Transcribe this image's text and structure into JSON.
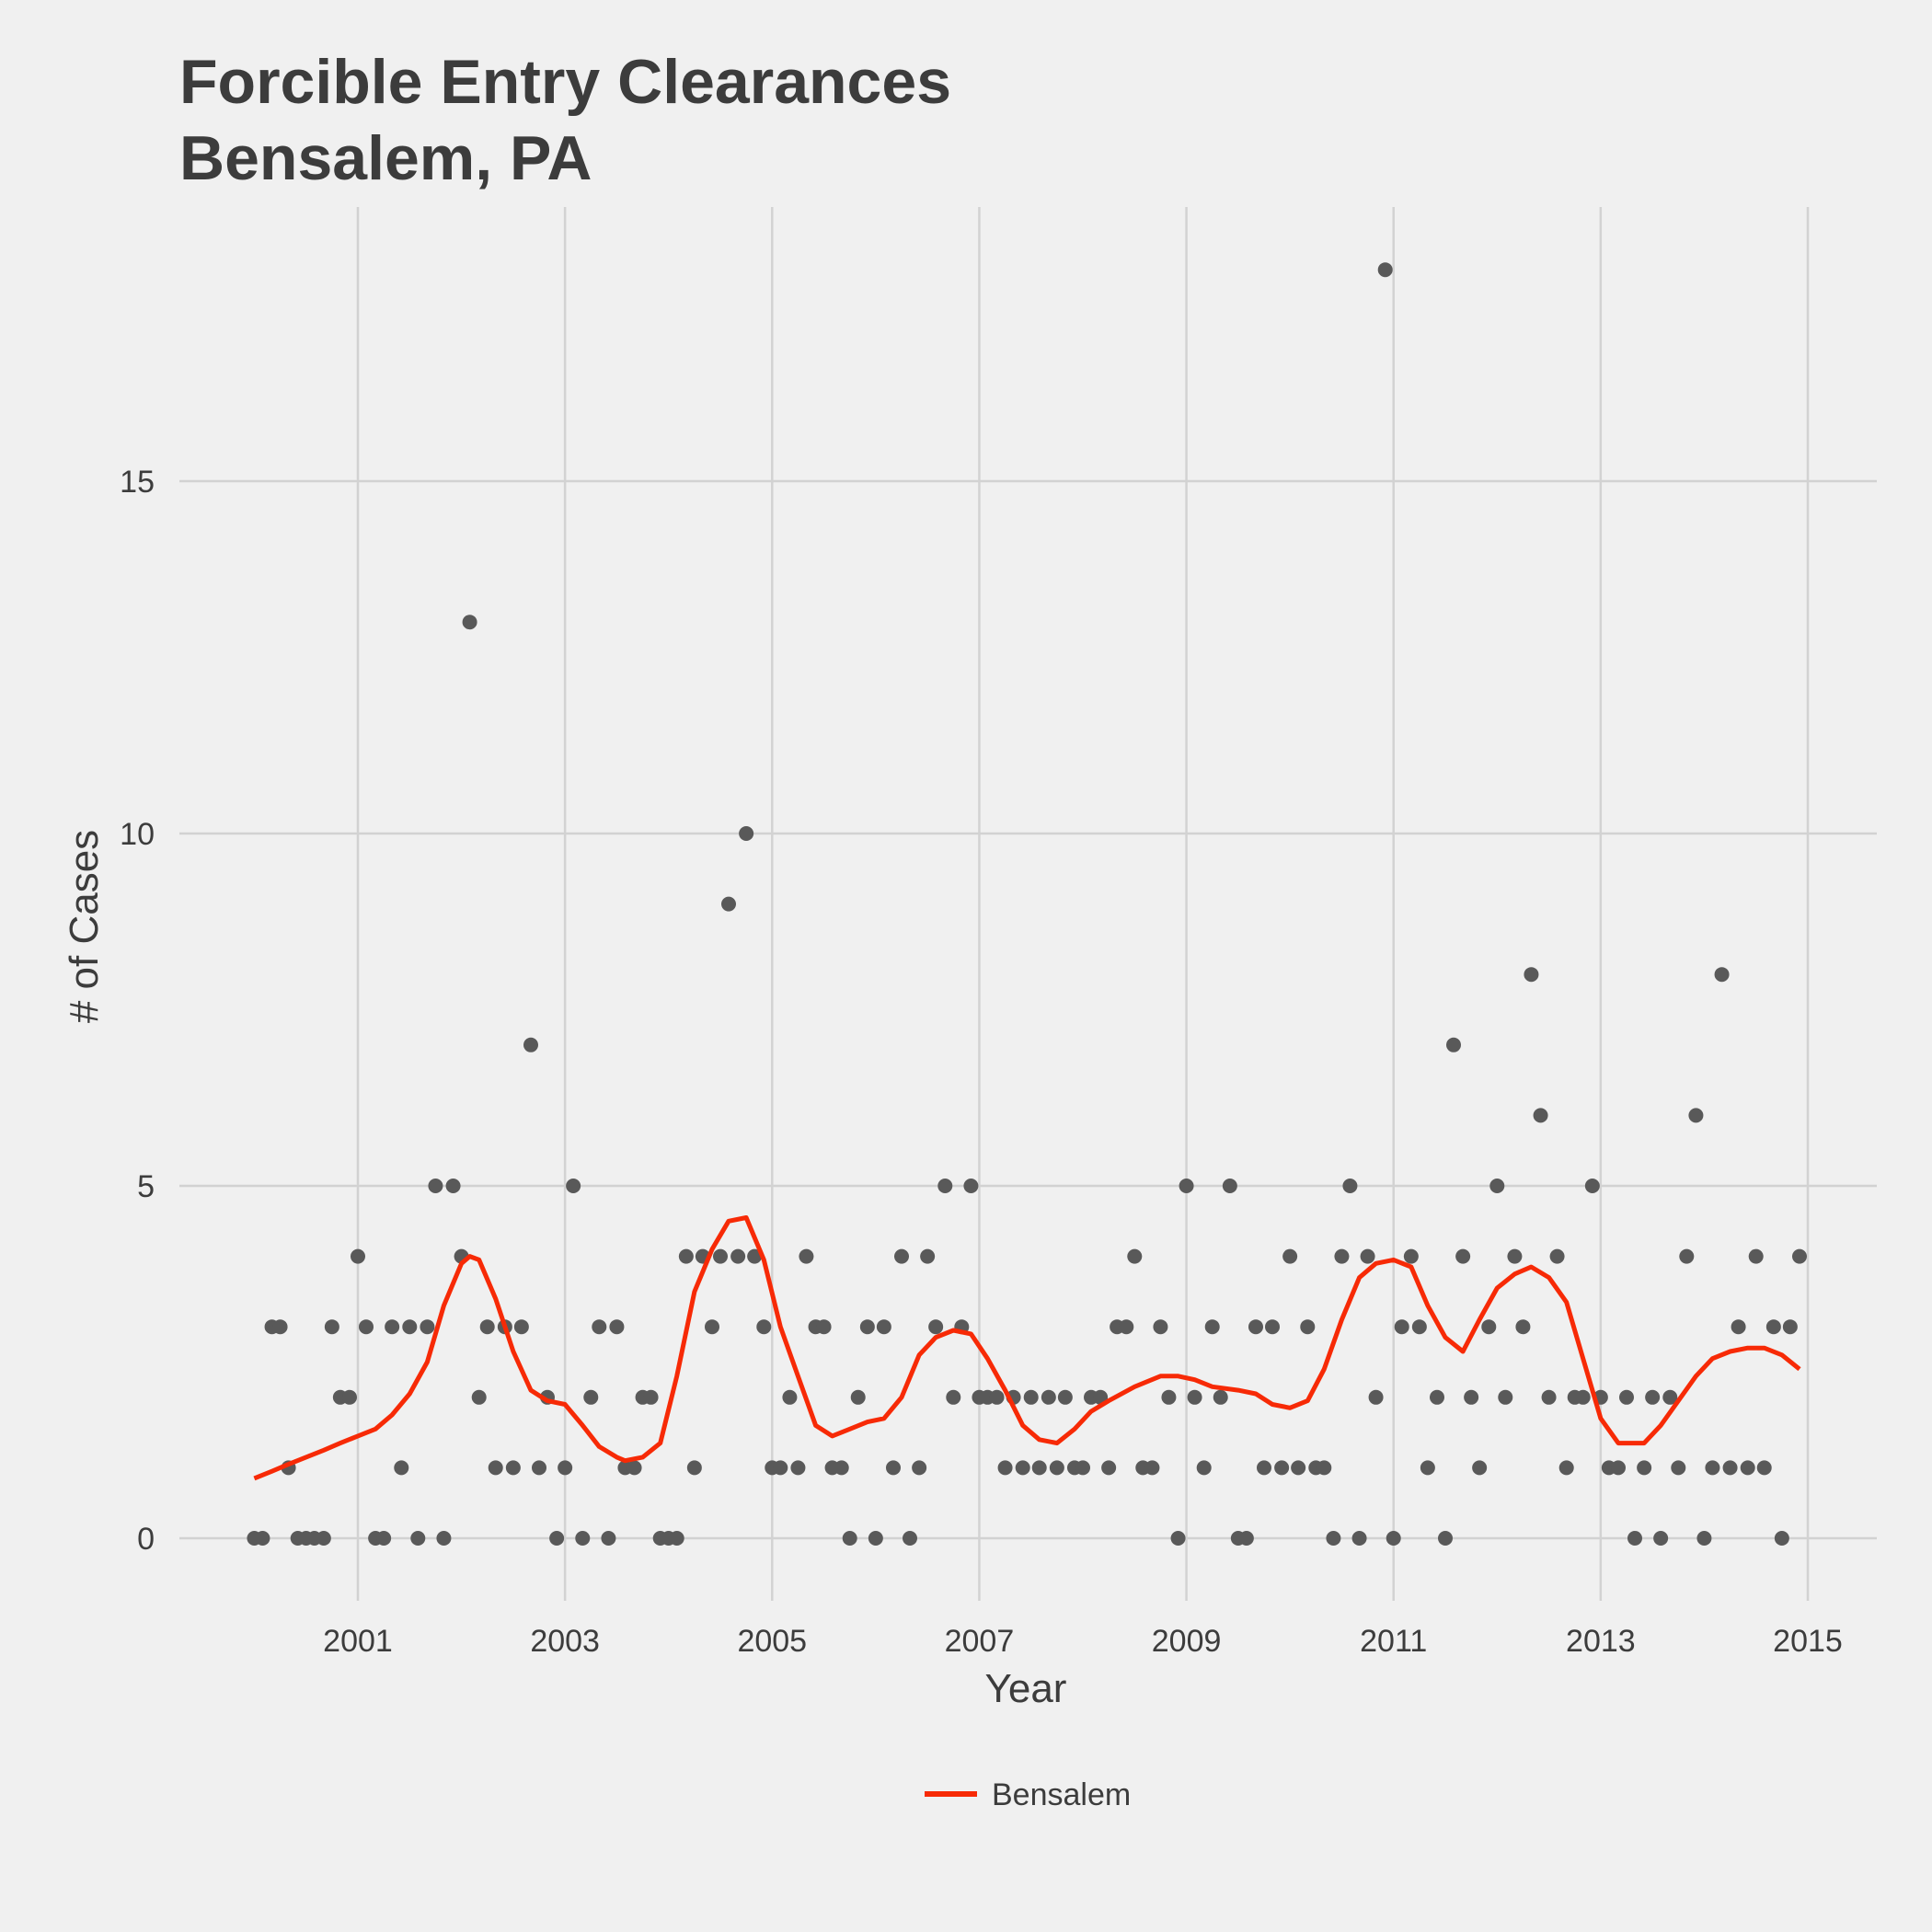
{
  "chart_data": {
    "type": "scatter",
    "title": [
      "Forcible Entry Clearances",
      "Bensalem, PA"
    ],
    "xlabel": "Year",
    "ylabel": "# of Cases",
    "x_ticks": [
      "2001",
      "2003",
      "2005",
      "2007",
      "2009",
      "2011",
      "2013",
      "2015"
    ],
    "y_ticks": [
      "0",
      "5",
      "10",
      "15"
    ],
    "xlim": [
      2000.0,
      2016.0
    ],
    "ylim": [
      0,
      18
    ],
    "grid": true,
    "legend_position": "bottom",
    "colors": {
      "points": "#595959",
      "smooth": "#f72a06",
      "grid": "#d2d2d2",
      "background": "#f0f0f0",
      "text": "#3c3c3c"
    },
    "points": [
      [
        2000.0,
        0
      ],
      [
        2000.08,
        0
      ],
      [
        2000.17,
        3
      ],
      [
        2000.25,
        3
      ],
      [
        2000.33,
        1
      ],
      [
        2000.42,
        0
      ],
      [
        2000.5,
        0
      ],
      [
        2000.58,
        0
      ],
      [
        2000.67,
        0
      ],
      [
        2000.75,
        3
      ],
      [
        2000.83,
        2
      ],
      [
        2000.92,
        2
      ],
      [
        2001.0,
        4
      ],
      [
        2001.08,
        3
      ],
      [
        2001.17,
        0
      ],
      [
        2001.25,
        0
      ],
      [
        2001.33,
        3
      ],
      [
        2001.42,
        1
      ],
      [
        2001.5,
        3
      ],
      [
        2001.58,
        0
      ],
      [
        2001.67,
        3
      ],
      [
        2001.75,
        5
      ],
      [
        2001.83,
        0
      ],
      [
        2001.92,
        5
      ],
      [
        2002.0,
        4
      ],
      [
        2002.08,
        13
      ],
      [
        2002.17,
        2
      ],
      [
        2002.25,
        3
      ],
      [
        2002.33,
        1
      ],
      [
        2002.42,
        3
      ],
      [
        2002.5,
        1
      ],
      [
        2002.58,
        3
      ],
      [
        2002.67,
        7
      ],
      [
        2002.75,
        1
      ],
      [
        2002.83,
        2
      ],
      [
        2002.92,
        0
      ],
      [
        2003.0,
        1
      ],
      [
        2003.08,
        5
      ],
      [
        2003.17,
        0
      ],
      [
        2003.25,
        2
      ],
      [
        2003.33,
        3
      ],
      [
        2003.42,
        0
      ],
      [
        2003.5,
        3
      ],
      [
        2003.58,
        1
      ],
      [
        2003.67,
        1
      ],
      [
        2003.75,
        2
      ],
      [
        2003.83,
        2
      ],
      [
        2003.92,
        0
      ],
      [
        2004.0,
        0
      ],
      [
        2004.08,
        0
      ],
      [
        2004.17,
        4
      ],
      [
        2004.25,
        1
      ],
      [
        2004.33,
        4
      ],
      [
        2004.42,
        3
      ],
      [
        2004.5,
        4
      ],
      [
        2004.58,
        9
      ],
      [
        2004.67,
        4
      ],
      [
        2004.75,
        10
      ],
      [
        2004.83,
        4
      ],
      [
        2004.92,
        3
      ],
      [
        2005.0,
        1
      ],
      [
        2005.08,
        1
      ],
      [
        2005.17,
        2
      ],
      [
        2005.25,
        1
      ],
      [
        2005.33,
        4
      ],
      [
        2005.42,
        3
      ],
      [
        2005.5,
        3
      ],
      [
        2005.58,
        1
      ],
      [
        2005.67,
        1
      ],
      [
        2005.75,
        0
      ],
      [
        2005.83,
        2
      ],
      [
        2005.92,
        3
      ],
      [
        2006.0,
        0
      ],
      [
        2006.08,
        3
      ],
      [
        2006.17,
        1
      ],
      [
        2006.25,
        4
      ],
      [
        2006.33,
        0
      ],
      [
        2006.42,
        1
      ],
      [
        2006.5,
        4
      ],
      [
        2006.58,
        3
      ],
      [
        2006.67,
        5
      ],
      [
        2006.75,
        2
      ],
      [
        2006.83,
        3
      ],
      [
        2006.92,
        5
      ],
      [
        2007.0,
        2
      ],
      [
        2007.08,
        2
      ],
      [
        2007.17,
        2
      ],
      [
        2007.25,
        1
      ],
      [
        2007.33,
        2
      ],
      [
        2007.42,
        1
      ],
      [
        2007.5,
        2
      ],
      [
        2007.58,
        1
      ],
      [
        2007.67,
        2
      ],
      [
        2007.75,
        1
      ],
      [
        2007.83,
        2
      ],
      [
        2007.92,
        1
      ],
      [
        2008.0,
        1
      ],
      [
        2008.08,
        2
      ],
      [
        2008.17,
        2
      ],
      [
        2008.25,
        1
      ],
      [
        2008.33,
        3
      ],
      [
        2008.42,
        3
      ],
      [
        2008.5,
        4
      ],
      [
        2008.58,
        1
      ],
      [
        2008.67,
        1
      ],
      [
        2008.75,
        3
      ],
      [
        2008.83,
        2
      ],
      [
        2008.92,
        0
      ],
      [
        2009.0,
        5
      ],
      [
        2009.08,
        2
      ],
      [
        2009.17,
        1
      ],
      [
        2009.25,
        3
      ],
      [
        2009.33,
        2
      ],
      [
        2009.42,
        5
      ],
      [
        2009.5,
        0
      ],
      [
        2009.58,
        0
      ],
      [
        2009.67,
        3
      ],
      [
        2009.75,
        1
      ],
      [
        2009.83,
        3
      ],
      [
        2009.92,
        1
      ],
      [
        2010.0,
        4
      ],
      [
        2010.08,
        1
      ],
      [
        2010.17,
        3
      ],
      [
        2010.25,
        1
      ],
      [
        2010.33,
        1
      ],
      [
        2010.42,
        0
      ],
      [
        2010.5,
        4
      ],
      [
        2010.58,
        5
      ],
      [
        2010.67,
        0
      ],
      [
        2010.75,
        4
      ],
      [
        2010.83,
        2
      ],
      [
        2010.92,
        18
      ],
      [
        2011.0,
        0
      ],
      [
        2011.08,
        3
      ],
      [
        2011.17,
        4
      ],
      [
        2011.25,
        3
      ],
      [
        2011.33,
        1
      ],
      [
        2011.42,
        2
      ],
      [
        2011.5,
        0
      ],
      [
        2011.58,
        7
      ],
      [
        2011.67,
        4
      ],
      [
        2011.75,
        2
      ],
      [
        2011.83,
        1
      ],
      [
        2011.92,
        3
      ],
      [
        2012.0,
        5
      ],
      [
        2012.08,
        2
      ],
      [
        2012.17,
        4
      ],
      [
        2012.25,
        3
      ],
      [
        2012.33,
        8
      ],
      [
        2012.42,
        6
      ],
      [
        2012.5,
        2
      ],
      [
        2012.58,
        4
      ],
      [
        2012.67,
        1
      ],
      [
        2012.75,
        2
      ],
      [
        2012.83,
        2
      ],
      [
        2012.92,
        5
      ],
      [
        2013.0,
        2
      ],
      [
        2013.08,
        1
      ],
      [
        2013.17,
        1
      ],
      [
        2013.25,
        2
      ],
      [
        2013.33,
        0
      ],
      [
        2013.42,
        1
      ],
      [
        2013.5,
        2
      ],
      [
        2013.58,
        0
      ],
      [
        2013.67,
        2
      ],
      [
        2013.75,
        1
      ],
      [
        2013.83,
        4
      ],
      [
        2013.92,
        6
      ],
      [
        2014.0,
        0
      ],
      [
        2014.08,
        1
      ],
      [
        2014.17,
        8
      ],
      [
        2014.25,
        1
      ],
      [
        2014.33,
        3
      ],
      [
        2014.42,
        1
      ],
      [
        2014.5,
        4
      ],
      [
        2014.58,
        1
      ],
      [
        2014.67,
        3
      ],
      [
        2014.75,
        0
      ],
      [
        2014.83,
        3
      ],
      [
        2014.92,
        4
      ]
    ],
    "series": [
      {
        "name": "Bensalem",
        "x": [
          2000.0,
          2000.17,
          2000.33,
          2000.5,
          2000.67,
          2000.83,
          2001.0,
          2001.17,
          2001.33,
          2001.5,
          2001.67,
          2001.83,
          2002.0,
          2002.08,
          2002.17,
          2002.33,
          2002.5,
          2002.67,
          2002.83,
          2003.0,
          2003.17,
          2003.33,
          2003.5,
          2003.58,
          2003.75,
          2003.92,
          2004.08,
          2004.25,
          2004.42,
          2004.58,
          2004.75,
          2004.92,
          2005.08,
          2005.25,
          2005.42,
          2005.58,
          2005.75,
          2005.92,
          2006.08,
          2006.25,
          2006.42,
          2006.58,
          2006.75,
          2006.92,
          2007.08,
          2007.25,
          2007.42,
          2007.58,
          2007.75,
          2007.92,
          2008.08,
          2008.25,
          2008.5,
          2008.75,
          2008.92,
          2009.08,
          2009.25,
          2009.5,
          2009.67,
          2009.83,
          2010.0,
          2010.17,
          2010.33,
          2010.5,
          2010.67,
          2010.83,
          2011.0,
          2011.17,
          2011.33,
          2011.5,
          2011.67,
          2011.83,
          2012.0,
          2012.17,
          2012.33,
          2012.5,
          2012.67,
          2012.83,
          2013.0,
          2013.17,
          2013.25,
          2013.42,
          2013.58,
          2013.75,
          2013.92,
          2014.08,
          2014.25,
          2014.42,
          2014.58,
          2014.75,
          2014.92
        ],
        "y": [
          0.85,
          0.95,
          1.05,
          1.15,
          1.25,
          1.35,
          1.45,
          1.55,
          1.75,
          2.05,
          2.5,
          3.3,
          3.9,
          4.0,
          3.95,
          3.4,
          2.65,
          2.1,
          1.95,
          1.9,
          1.6,
          1.3,
          1.15,
          1.1,
          1.15,
          1.35,
          2.3,
          3.5,
          4.1,
          4.5,
          4.55,
          3.95,
          3.0,
          2.3,
          1.6,
          1.45,
          1.55,
          1.65,
          1.7,
          2.0,
          2.6,
          2.85,
          2.95,
          2.9,
          2.55,
          2.1,
          1.6,
          1.4,
          1.35,
          1.55,
          1.8,
          1.95,
          2.15,
          2.3,
          2.3,
          2.25,
          2.15,
          2.1,
          2.05,
          1.9,
          1.85,
          1.95,
          2.4,
          3.1,
          3.7,
          3.9,
          3.95,
          3.85,
          3.3,
          2.85,
          2.65,
          3.1,
          3.55,
          3.75,
          3.85,
          3.7,
          3.35,
          2.55,
          1.7,
          1.35,
          1.35,
          1.35,
          1.6,
          1.95,
          2.3,
          2.55,
          2.65,
          2.7,
          2.7,
          2.6,
          2.4
        ]
      }
    ]
  }
}
